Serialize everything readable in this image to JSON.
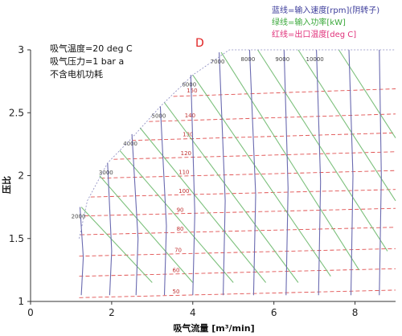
{
  "chart_data": {
    "type": "line",
    "marker": "D",
    "xlabel": "吸气流量 [m³/min]",
    "ylabel": "压比",
    "xlim": [
      0,
      9
    ],
    "ylim": [
      1,
      3
    ],
    "x_ticks": [
      0,
      2,
      4,
      6,
      8
    ],
    "y_ticks": [
      1,
      1.5,
      2,
      2.5,
      3
    ],
    "y_tick_labels": [
      "1",
      "1.5",
      "2",
      "2.5",
      "3"
    ],
    "notes": [
      "吸气温度=20 deg C",
      "吸气压力=1 bar a",
      "不含电机功耗"
    ],
    "legend": [
      {
        "label": "蓝线=输入速度[rpm](阴转子)",
        "color": "#3b3b9a"
      },
      {
        "label": "绿线=输入功率[kW]",
        "color": "#3aa83a"
      },
      {
        "label": "红线=出口温度[deg C]",
        "color": "#e0307a"
      }
    ],
    "colors": {
      "speed": "#6a6ab0",
      "power": "#7cc07c",
      "temperature": "#e05050"
    },
    "boundary": [
      [
        1.2,
        1.5
      ],
      [
        1.4,
        1.8
      ],
      [
        1.9,
        2.1
      ],
      [
        2.5,
        2.3
      ],
      [
        3.2,
        2.55
      ],
      [
        4.0,
        2.8
      ],
      [
        4.9,
        3.0
      ],
      [
        9.0,
        3.0
      ]
    ],
    "speed_lines": [
      {
        "rpm": "2000",
        "points": [
          [
            1.25,
            1.05
          ],
          [
            1.3,
            1.35
          ],
          [
            1.22,
            1.75
          ]
        ]
      },
      {
        "rpm": "3000",
        "points": [
          [
            1.95,
            1.05
          ],
          [
            2.0,
            1.4
          ],
          [
            1.9,
            2.1
          ]
        ]
      },
      {
        "rpm": "4000",
        "points": [
          [
            2.6,
            1.05
          ],
          [
            2.65,
            1.5
          ],
          [
            2.5,
            2.33
          ]
        ]
      },
      {
        "rpm": "5000",
        "points": [
          [
            3.3,
            1.05
          ],
          [
            3.35,
            1.6
          ],
          [
            3.2,
            2.55
          ]
        ]
      },
      {
        "rpm": "6000",
        "points": [
          [
            4.0,
            1.05
          ],
          [
            4.05,
            1.7
          ],
          [
            3.95,
            2.8
          ]
        ]
      },
      {
        "rpm": "7000",
        "points": [
          [
            4.75,
            1.05
          ],
          [
            4.8,
            1.8
          ],
          [
            4.65,
            2.98
          ]
        ]
      },
      {
        "rpm": "8000",
        "points": [
          [
            5.5,
            1.05
          ],
          [
            5.55,
            1.85
          ],
          [
            5.4,
            3.0
          ]
        ]
      },
      {
        "rpm": "9000",
        "points": [
          [
            6.3,
            1.05
          ],
          [
            6.35,
            1.9
          ],
          [
            6.25,
            3.0
          ]
        ]
      },
      {
        "rpm": "10000",
        "points": [
          [
            7.1,
            1.05
          ],
          [
            7.15,
            1.95
          ],
          [
            7.05,
            3.0
          ]
        ]
      },
      {
        "rpm": "",
        "points": [
          [
            7.9,
            1.05
          ],
          [
            7.95,
            2.0
          ],
          [
            7.85,
            3.0
          ]
        ]
      },
      {
        "rpm": "",
        "points": [
          [
            8.6,
            1.05
          ],
          [
            8.65,
            2.0
          ],
          [
            8.6,
            3.0
          ]
        ]
      }
    ],
    "temperature_lines": [
      {
        "label": "50",
        "y": 1.05,
        "label_x": 3.5
      },
      {
        "label": "60",
        "y": 1.22,
        "label_x": 3.5
      },
      {
        "label": "70",
        "y": 1.38,
        "label_x": 3.55
      },
      {
        "label": "80",
        "y": 1.55,
        "label_x": 3.6
      },
      {
        "label": "90",
        "y": 1.7,
        "label_x": 3.6
      },
      {
        "label": "100",
        "y": 1.85,
        "label_x": 3.65
      },
      {
        "label": "110",
        "y": 2.0,
        "label_x": 3.65
      },
      {
        "label": "120",
        "y": 2.15,
        "label_x": 3.7
      },
      {
        "label": "130",
        "y": 2.3,
        "label_x": 3.75
      },
      {
        "label": "140",
        "y": 2.45,
        "label_x": 3.8
      },
      {
        "label": "150",
        "y": 2.65,
        "label_x": 3.85
      }
    ],
    "power_lines": [
      {
        "points": [
          [
            1.25,
            1.75
          ],
          [
            3.0,
            1.15
          ]
        ]
      },
      {
        "points": [
          [
            1.7,
            2.0
          ],
          [
            4.0,
            1.15
          ]
        ]
      },
      {
        "points": [
          [
            2.2,
            2.2
          ],
          [
            5.0,
            1.15
          ]
        ]
      },
      {
        "points": [
          [
            2.7,
            2.38
          ],
          [
            5.8,
            1.15
          ]
        ]
      },
      {
        "points": [
          [
            3.3,
            2.58
          ],
          [
            6.6,
            1.15
          ]
        ]
      },
      {
        "points": [
          [
            4.0,
            2.8
          ],
          [
            7.4,
            1.2
          ]
        ]
      },
      {
        "points": [
          [
            4.7,
            2.98
          ],
          [
            8.1,
            1.25
          ]
        ]
      },
      {
        "points": [
          [
            5.6,
            3.0
          ],
          [
            8.8,
            1.4
          ]
        ]
      },
      {
        "points": [
          [
            6.6,
            3.0
          ],
          [
            9.0,
            1.8
          ]
        ]
      },
      {
        "points": [
          [
            7.6,
            3.0
          ],
          [
            9.0,
            2.3
          ]
        ]
      }
    ]
  }
}
